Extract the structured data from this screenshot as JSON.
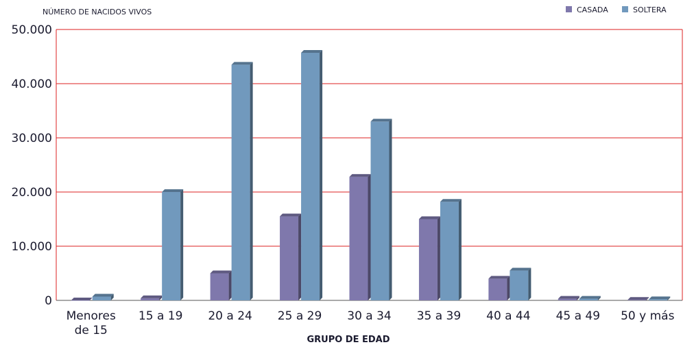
{
  "chart_data": {
    "type": "bar",
    "title": "",
    "ylabel": "NÚMERO DE NACIDOS VIVOS",
    "xlabel": "GRUPO DE EDAD",
    "categories": [
      "Menores\nde 15",
      "15 a 19",
      "20 a 24",
      "25 a 29",
      "30 a 34",
      "35 a 39",
      "40 a 44",
      "45 a 49",
      "50 y más"
    ],
    "series": [
      {
        "name": "CASADA",
        "color": "#7f78ac",
        "values": [
          0,
          400,
          5000,
          15500,
          22800,
          15000,
          4000,
          300,
          100
        ]
      },
      {
        "name": "SOLTERA",
        "color": "#7199bd",
        "values": [
          700,
          20000,
          43500,
          45700,
          33000,
          18200,
          5500,
          300,
          200
        ]
      }
    ],
    "ylim": [
      0,
      50000
    ],
    "yticks": [
      "0",
      "10.000",
      "20.000",
      "30.000",
      "40.000",
      "50.000"
    ],
    "ytick_values": [
      0,
      10000,
      20000,
      30000,
      40000,
      50000
    ],
    "grid": true,
    "legend_position": "top-right",
    "gridline_color": "#dd2222"
  }
}
